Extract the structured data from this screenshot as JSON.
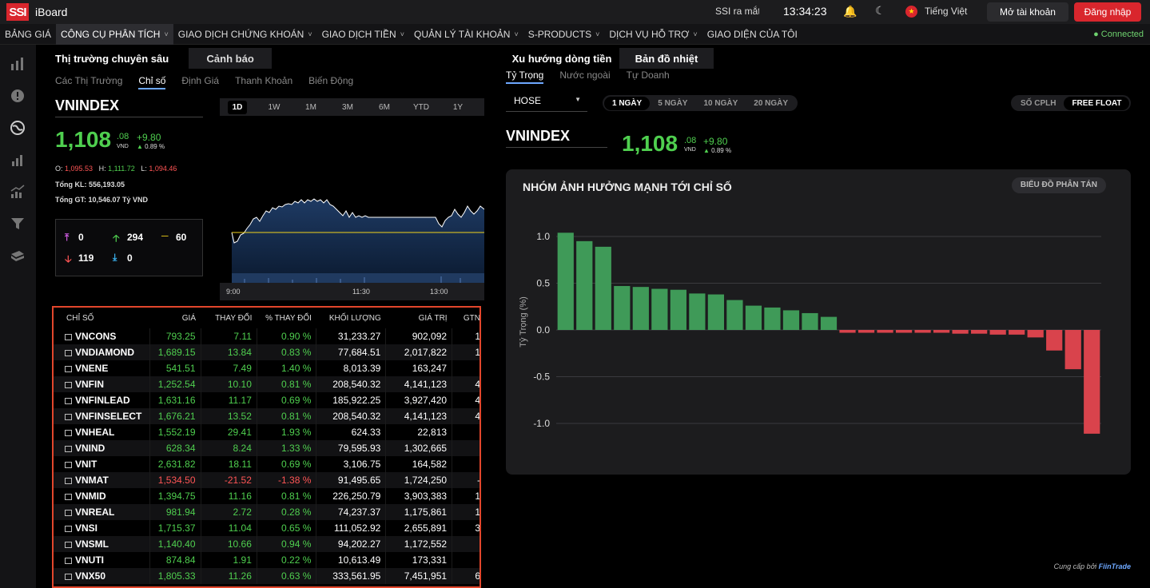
{
  "app": {
    "logo": "SSI",
    "name": "iBoard",
    "ticker_text": "SSI ra mắt",
    "clock": "13:34:23",
    "language": "Tiếng Việt",
    "open_account": "Mở tài khoản",
    "login": "Đăng nhập"
  },
  "menu": [
    {
      "label": "BẢNG GIÁ",
      "dropdown": false,
      "active": false
    },
    {
      "label": "CÔNG CỤ PHÂN TÍCH",
      "dropdown": true,
      "active": true
    },
    {
      "label": "GIAO DỊCH CHỨNG KHOÁN",
      "dropdown": true,
      "active": false
    },
    {
      "label": "GIAO DỊCH TIỀN",
      "dropdown": true,
      "active": false
    },
    {
      "label": "QUẢN LÝ TÀI KHOẢN",
      "dropdown": true,
      "active": false
    },
    {
      "label": "S-PRODUCTS",
      "dropdown": true,
      "active": false
    },
    {
      "label": "DỊCH VỤ HỖ TRỢ",
      "dropdown": true,
      "active": false
    },
    {
      "label": "GIAO DIỆN CỦA TÔI",
      "dropdown": false,
      "active": false
    }
  ],
  "status": {
    "connected": "Connected"
  },
  "sidebar_icons": [
    "bar-chart-icon",
    "alert-icon",
    "globe-icon",
    "stats-icon",
    "growth-chart-icon",
    "filter-icon",
    "book-icon"
  ],
  "left": {
    "tabs": [
      "Thị trường chuyên sâu",
      "Cảnh báo"
    ],
    "subtabs": [
      "Các Thị Trường",
      "Chỉ số",
      "Định Giá",
      "Thanh Khoản",
      "Biến Động"
    ],
    "index_name": "VNINDEX",
    "value_int": "1,108",
    "value_dec": ".08",
    "unit": "VND",
    "change": "+9.80",
    "pct": "0.89 %",
    "open_label": "O:",
    "open": "1,095.53",
    "high_label": "H:",
    "high": "1,111.72",
    "low_label": "L:",
    "low": "1,094.46",
    "volume_label": "Tổng KL:",
    "volume": "556,193.05",
    "value_label": "Tổng GT:",
    "value": "10,546.07 Tỷ VND",
    "breadth": {
      "ceiling": "0",
      "up": "294",
      "unchanged": "60",
      "down": "119",
      "floor": "0"
    },
    "chart_periods": [
      "1D",
      "1W",
      "1M",
      "3M",
      "6M",
      "YTD",
      "1Y"
    ],
    "chart_times": [
      "9:00",
      "11:30",
      "13:00"
    ]
  },
  "table": {
    "headers": [
      "CHỈ SỐ",
      "GIÁ",
      "THAY ĐỔI",
      "% THAY ĐỔI",
      "KHỐI LƯỢNG",
      "GIÁ TRỊ",
      "GTN"
    ],
    "rows": [
      {
        "name": "VNCONS",
        "price": "793.25",
        "chg": "7.11",
        "pct": "0.90 %",
        "vol": "31,233.27",
        "val": "902,092",
        "gtn": "1",
        "up": true
      },
      {
        "name": "VNDIAMOND",
        "price": "1,689.15",
        "chg": "13.84",
        "pct": "0.83 %",
        "vol": "77,684.51",
        "val": "2,017,822",
        "gtn": "1",
        "up": true
      },
      {
        "name": "VNENE",
        "price": "541.51",
        "chg": "7.49",
        "pct": "1.40 %",
        "vol": "8,013.39",
        "val": "163,247",
        "gtn": "",
        "up": true
      },
      {
        "name": "VNFIN",
        "price": "1,252.54",
        "chg": "10.10",
        "pct": "0.81 %",
        "vol": "208,540.32",
        "val": "4,141,123",
        "gtn": "4",
        "up": true
      },
      {
        "name": "VNFINLEAD",
        "price": "1,631.16",
        "chg": "11.17",
        "pct": "0.69 %",
        "vol": "185,922.25",
        "val": "3,927,420",
        "gtn": "4",
        "up": true
      },
      {
        "name": "VNFINSELECT",
        "price": "1,676.21",
        "chg": "13.52",
        "pct": "0.81 %",
        "vol": "208,540.32",
        "val": "4,141,123",
        "gtn": "4",
        "up": true
      },
      {
        "name": "VNHEAL",
        "price": "1,552.19",
        "chg": "29.41",
        "pct": "1.93 %",
        "vol": "624.33",
        "val": "22,813",
        "gtn": "",
        "up": true
      },
      {
        "name": "VNIND",
        "price": "628.34",
        "chg": "8.24",
        "pct": "1.33 %",
        "vol": "79,595.93",
        "val": "1,302,665",
        "gtn": "",
        "up": true
      },
      {
        "name": "VNIT",
        "price": "2,631.82",
        "chg": "18.11",
        "pct": "0.69 %",
        "vol": "3,106.75",
        "val": "164,582",
        "gtn": "",
        "up": true
      },
      {
        "name": "VNMAT",
        "price": "1,534.50",
        "chg": "-21.52",
        "pct": "-1.38 %",
        "vol": "91,495.65",
        "val": "1,724,250",
        "gtn": "-",
        "up": false
      },
      {
        "name": "VNMID",
        "price": "1,394.75",
        "chg": "11.16",
        "pct": "0.81 %",
        "vol": "226,250.79",
        "val": "3,903,383",
        "gtn": "1",
        "up": true
      },
      {
        "name": "VNREAL",
        "price": "981.94",
        "chg": "2.72",
        "pct": "0.28 %",
        "vol": "74,237.37",
        "val": "1,175,861",
        "gtn": "1",
        "up": true
      },
      {
        "name": "VNSI",
        "price": "1,715.37",
        "chg": "11.04",
        "pct": "0.65 %",
        "vol": "111,052.92",
        "val": "2,655,891",
        "gtn": "3",
        "up": true
      },
      {
        "name": "VNSML",
        "price": "1,140.40",
        "chg": "10.66",
        "pct": "0.94 %",
        "vol": "94,202.27",
        "val": "1,172,552",
        "gtn": "",
        "up": true
      },
      {
        "name": "VNUTI",
        "price": "874.84",
        "chg": "1.91",
        "pct": "0.22 %",
        "vol": "10,613.49",
        "val": "173,331",
        "gtn": "",
        "up": true
      },
      {
        "name": "VNX50",
        "price": "1,805.33",
        "chg": "11.26",
        "pct": "0.63 %",
        "vol": "333,561.95",
        "val": "7,451,951",
        "gtn": "6",
        "up": true
      }
    ]
  },
  "right": {
    "tabs": [
      "Xu hướng dòng tiền",
      "Bản đồ nhiệt"
    ],
    "subtabs": [
      "Tỷ Trọng",
      "Nước ngoài",
      "Tự Doanh"
    ],
    "exchange": "HOSE",
    "periods": [
      "1 NGÀY",
      "5 NGÀY",
      "10 NGÀY",
      "20 NGÀY"
    ],
    "float_options": [
      "SỐ CPLH",
      "FREE FLOAT"
    ],
    "index_name": "VNINDEX",
    "value_int": "1,108",
    "value_dec": ".08",
    "unit": "VND",
    "change": "+9.80",
    "pct": "0.89 %",
    "card_title": "NHÓM ẢNH HƯỞNG MẠNH TỚI CHỈ SỐ",
    "scatter_button": "BIỂU ĐỒ PHÂN TÁN",
    "provider_prefix": "Cung cấp bởi",
    "provider_name": "FiinTrade"
  },
  "colors": {
    "up": "#4fcf4f",
    "down": "#ff5555",
    "bar_up": "#3f9a58",
    "bar_down": "#d9434c",
    "accent": "#d9262d"
  },
  "chart_data": {
    "type": "bar",
    "ylabel": "Tỷ Trọng (%)",
    "ylim": [
      -1.2,
      1.1
    ],
    "yticks": [
      1.0,
      0.5,
      0.0,
      -0.5,
      -1.0
    ],
    "ytick_labels": [
      "1.0",
      "0.5",
      "0.0",
      "-0.5",
      "-1.0"
    ],
    "grid": true,
    "values": [
      1.04,
      0.95,
      0.89,
      0.47,
      0.46,
      0.44,
      0.43,
      0.39,
      0.38,
      0.32,
      0.26,
      0.24,
      0.21,
      0.18,
      0.14,
      -0.03,
      -0.03,
      -0.03,
      -0.03,
      -0.03,
      -0.03,
      -0.04,
      -0.04,
      -0.05,
      -0.05,
      -0.08,
      -0.22,
      -0.42,
      -1.11
    ]
  }
}
